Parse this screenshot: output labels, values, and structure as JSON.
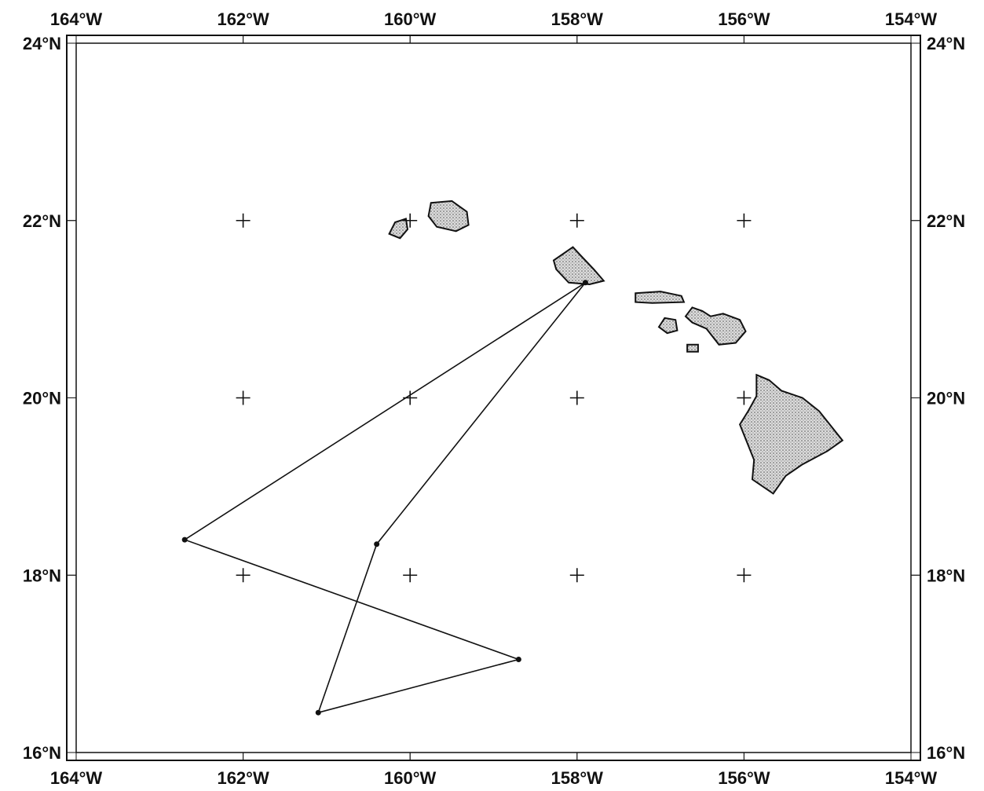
{
  "map": {
    "lon_range": [
      -164,
      -154
    ],
    "lat_range": [
      16,
      24
    ],
    "lon_ticks": [
      {
        "value": -164,
        "label": "164°W"
      },
      {
        "value": -162,
        "label": "162°W"
      },
      {
        "value": -160,
        "label": "160°W"
      },
      {
        "value": -158,
        "label": "158°W"
      },
      {
        "value": -156,
        "label": "156°W"
      },
      {
        "value": -154,
        "label": "154°W"
      }
    ],
    "lat_ticks": [
      {
        "value": 24,
        "label": "24°N"
      },
      {
        "value": 22,
        "label": "22°N"
      },
      {
        "value": 20,
        "label": "20°N"
      },
      {
        "value": 18,
        "label": "18°N"
      },
      {
        "value": 16,
        "label": "16°N"
      }
    ],
    "grid_crosses": [
      {
        "lon": -162,
        "lat": 22
      },
      {
        "lon": -160,
        "lat": 22
      },
      {
        "lon": -158,
        "lat": 22
      },
      {
        "lon": -156,
        "lat": 22
      },
      {
        "lon": -162,
        "lat": 20
      },
      {
        "lon": -160,
        "lat": 20
      },
      {
        "lon": -158,
        "lat": 20
      },
      {
        "lon": -156,
        "lat": 20
      },
      {
        "lon": -162,
        "lat": 18
      },
      {
        "lon": -160,
        "lat": 18
      },
      {
        "lon": -158,
        "lat": 18
      },
      {
        "lon": -156,
        "lat": 18
      }
    ],
    "track": [
      {
        "lon": -157.9,
        "lat": 21.3
      },
      {
        "lon": -162.7,
        "lat": 18.4
      },
      {
        "lon": -158.7,
        "lat": 17.05
      },
      {
        "lon": -161.1,
        "lat": 16.45
      },
      {
        "lon": -160.4,
        "lat": 18.35
      },
      {
        "lon": -157.9,
        "lat": 21.3
      }
    ],
    "islands": [
      {
        "name": "kauai",
        "pts": [
          [
            -159.75,
            22.2
          ],
          [
            -159.5,
            22.22
          ],
          [
            -159.32,
            22.1
          ],
          [
            -159.3,
            21.95
          ],
          [
            -159.45,
            21.88
          ],
          [
            -159.68,
            21.93
          ],
          [
            -159.78,
            22.05
          ]
        ]
      },
      {
        "name": "niihau",
        "pts": [
          [
            -160.05,
            22.02
          ],
          [
            -160.18,
            21.98
          ],
          [
            -160.25,
            21.85
          ],
          [
            -160.12,
            21.8
          ],
          [
            -160.03,
            21.9
          ]
        ]
      },
      {
        "name": "oahu",
        "pts": [
          [
            -158.28,
            21.55
          ],
          [
            -158.05,
            21.7
          ],
          [
            -157.95,
            21.6
          ],
          [
            -157.8,
            21.45
          ],
          [
            -157.68,
            21.32
          ],
          [
            -157.85,
            21.28
          ],
          [
            -158.1,
            21.3
          ],
          [
            -158.25,
            21.45
          ]
        ]
      },
      {
        "name": "molokai",
        "pts": [
          [
            -157.3,
            21.18
          ],
          [
            -157.0,
            21.2
          ],
          [
            -156.75,
            21.15
          ],
          [
            -156.72,
            21.08
          ],
          [
            -157.1,
            21.07
          ],
          [
            -157.3,
            21.08
          ]
        ]
      },
      {
        "name": "lanai",
        "pts": [
          [
            -156.95,
            20.9
          ],
          [
            -156.82,
            20.88
          ],
          [
            -156.8,
            20.76
          ],
          [
            -156.92,
            20.73
          ],
          [
            -157.02,
            20.8
          ]
        ]
      },
      {
        "name": "maui",
        "pts": [
          [
            -156.62,
            21.02
          ],
          [
            -156.5,
            20.98
          ],
          [
            -156.4,
            20.92
          ],
          [
            -156.25,
            20.95
          ],
          [
            -156.05,
            20.88
          ],
          [
            -155.98,
            20.75
          ],
          [
            -156.1,
            20.62
          ],
          [
            -156.3,
            20.6
          ],
          [
            -156.45,
            20.78
          ],
          [
            -156.62,
            20.85
          ],
          [
            -156.7,
            20.92
          ]
        ]
      },
      {
        "name": "kahoolawe",
        "pts": [
          [
            -156.68,
            20.6
          ],
          [
            -156.55,
            20.6
          ],
          [
            -156.55,
            20.52
          ],
          [
            -156.68,
            20.52
          ]
        ]
      },
      {
        "name": "hawaii",
        "pts": [
          [
            -155.85,
            20.26
          ],
          [
            -155.7,
            20.2
          ],
          [
            -155.55,
            20.08
          ],
          [
            -155.3,
            20.0
          ],
          [
            -155.1,
            19.85
          ],
          [
            -154.82,
            19.52
          ],
          [
            -155.0,
            19.4
          ],
          [
            -155.3,
            19.25
          ],
          [
            -155.5,
            19.12
          ],
          [
            -155.65,
            18.92
          ],
          [
            -155.9,
            19.08
          ],
          [
            -155.88,
            19.3
          ],
          [
            -156.05,
            19.7
          ],
          [
            -155.95,
            19.85
          ],
          [
            -155.85,
            20.02
          ]
        ]
      }
    ]
  }
}
